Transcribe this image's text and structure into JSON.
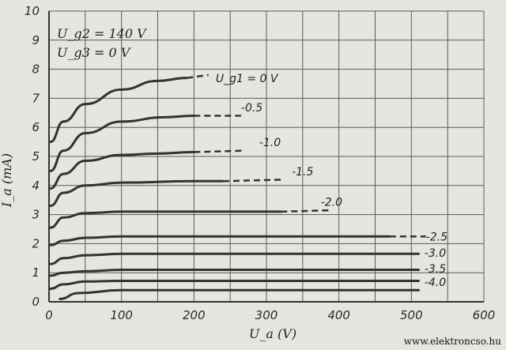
{
  "chart_data": {
    "type": "line",
    "title": "",
    "xlabel": "U_a (V)",
    "ylabel": "I_a (mA)",
    "xlim": [
      0,
      600
    ],
    "ylim": [
      0,
      10
    ],
    "x_ticks": [
      0,
      100,
      200,
      300,
      400,
      500,
      600
    ],
    "y_ticks": [
      0,
      1,
      2,
      3,
      4,
      5,
      6,
      7,
      8,
      9,
      10
    ],
    "grid": true,
    "conditions": [
      "U_g2 = 140 V",
      "U_g3 = 0 V"
    ],
    "series": [
      {
        "name": "U_g1 = 0 V",
        "label": "U_g1 = 0 V",
        "x": [
          2,
          20,
          50,
          100,
          150,
          190
        ],
        "y": [
          5.5,
          6.2,
          6.8,
          7.3,
          7.6,
          7.7
        ],
        "ext_x": [
          190,
          220
        ],
        "ext_y": [
          7.7,
          7.8
        ],
        "label_x": 230,
        "label_y": 7.55
      },
      {
        "name": "-0.5",
        "label": "-0.5",
        "x": [
          2,
          20,
          50,
          100,
          160,
          200
        ],
        "y": [
          4.5,
          5.2,
          5.8,
          6.2,
          6.35,
          6.4
        ],
        "ext_x": [
          200,
          265
        ],
        "ext_y": [
          6.4,
          6.4
        ],
        "label_x": 265,
        "label_y": 6.55
      },
      {
        "name": "-1.0",
        "label": "-1.0",
        "x": [
          2,
          20,
          50,
          100,
          150,
          200
        ],
        "y": [
          3.9,
          4.4,
          4.85,
          5.05,
          5.1,
          5.15
        ],
        "ext_x": [
          200,
          270
        ],
        "ext_y": [
          5.15,
          5.2
        ],
        "label_x": 290,
        "label_y": 5.35
      },
      {
        "name": "-1.5",
        "label": "-1.5",
        "x": [
          2,
          20,
          50,
          100,
          200,
          240
        ],
        "y": [
          3.3,
          3.75,
          4.0,
          4.1,
          4.15,
          4.15
        ],
        "ext_x": [
          240,
          320
        ],
        "ext_y": [
          4.15,
          4.2
        ],
        "label_x": 335,
        "label_y": 4.35
      },
      {
        "name": "-2.0",
        "label": "-2.0",
        "x": [
          2,
          20,
          50,
          100,
          200,
          320
        ],
        "y": [
          2.55,
          2.9,
          3.05,
          3.1,
          3.1,
          3.1
        ],
        "ext_x": [
          320,
          390
        ],
        "ext_y": [
          3.1,
          3.15
        ],
        "label_x": 375,
        "label_y": 3.3
      },
      {
        "name": "-2.5",
        "label": "-2.5",
        "x": [
          2,
          20,
          50,
          100,
          200,
          400,
          470
        ],
        "y": [
          1.95,
          2.1,
          2.2,
          2.25,
          2.25,
          2.25,
          2.25
        ],
        "ext_x": [
          470,
          520
        ],
        "ext_y": [
          2.25,
          2.25
        ],
        "label_x": 520,
        "label_y": 2.1
      },
      {
        "name": "-3.0",
        "label": "-3.0",
        "x": [
          2,
          20,
          50,
          100,
          200,
          400,
          510
        ],
        "y": [
          1.3,
          1.5,
          1.6,
          1.65,
          1.65,
          1.65,
          1.65
        ],
        "ext_x": [],
        "ext_y": [],
        "label_x": 518,
        "label_y": 1.55
      },
      {
        "name": "-3.5",
        "label": "-3.5",
        "x": [
          2,
          20,
          50,
          100,
          200,
          400,
          510
        ],
        "y": [
          0.9,
          1.0,
          1.05,
          1.1,
          1.1,
          1.1,
          1.1
        ],
        "ext_x": [],
        "ext_y": [],
        "label_x": 518,
        "label_y": 1.0
      },
      {
        "name": "-4.0",
        "label": "-4.0",
        "x": [
          2,
          20,
          50,
          100,
          200,
          400,
          510
        ],
        "y": [
          0.45,
          0.6,
          0.7,
          0.72,
          0.72,
          0.72,
          0.72
        ],
        "ext_x": [],
        "ext_y": [],
        "label_x": 518,
        "label_y": 0.55
      },
      {
        "name": "",
        "label": "",
        "x": [
          15,
          40,
          100,
          200,
          400,
          510
        ],
        "y": [
          0.1,
          0.3,
          0.4,
          0.4,
          0.4,
          0.4
        ],
        "ext_x": [],
        "ext_y": [],
        "label_x": null,
        "label_y": null
      }
    ]
  },
  "watermark": "www.elektroncso.hu"
}
